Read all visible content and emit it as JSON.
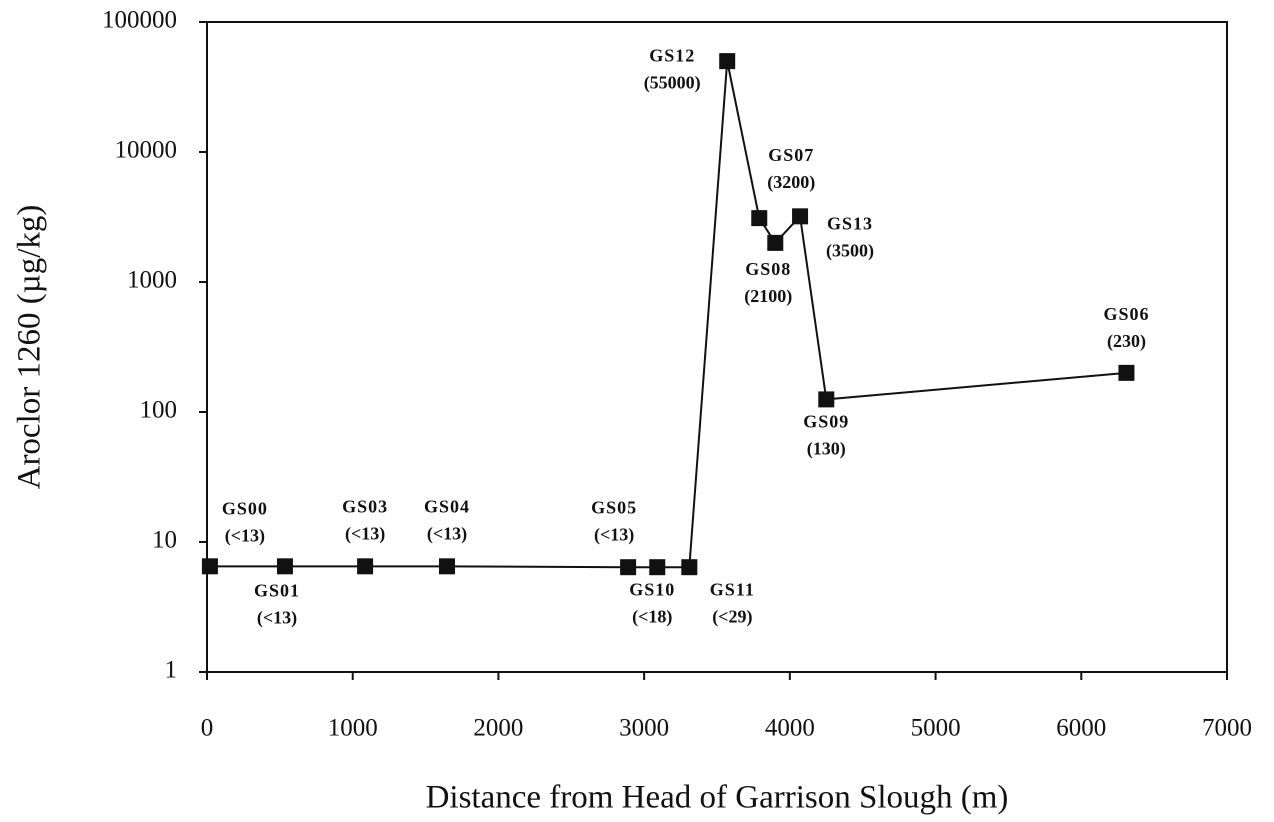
{
  "chart_data": {
    "type": "line",
    "x_label": "Distance from Head of Garrison Slough (m)",
    "y_label": "Aroclor 1260 (µg/kg)",
    "log_y": true,
    "color": "#111111",
    "x": [
      20,
      535,
      1085,
      1647,
      2890,
      3090,
      3310,
      3570,
      3790,
      3900,
      4070,
      4250,
      6310
    ],
    "values": [
      6.5,
      6.5,
      6.5,
      6.5,
      6.4,
      6.4,
      6.4,
      50000,
      3100,
      2000,
      3200,
      125,
      200
    ],
    "point_labels": [
      "GS00",
      "GS01",
      "GS03",
      "GS04",
      "GS05",
      "GS10",
      "GS11",
      "GS12",
      "GS07",
      "GS08",
      "GS13",
      "GS09",
      "GS06"
    ],
    "annotations": [
      "(<13)",
      "(<13)",
      "(<13)",
      "(<13)",
      "(<13)",
      "(<18)",
      "(<29)",
      "(55000)",
      "(3200)",
      "(2100)",
      "(3500)",
      "(130)",
      "(230)"
    ],
    "xlim": [
      0,
      7000
    ],
    "xticks": [
      0,
      1000,
      2000,
      3000,
      4000,
      5000,
      6000,
      7000
    ],
    "ylim": [
      1,
      100000
    ],
    "yticks": [
      1,
      10,
      100,
      1000,
      10000,
      100000
    ]
  }
}
